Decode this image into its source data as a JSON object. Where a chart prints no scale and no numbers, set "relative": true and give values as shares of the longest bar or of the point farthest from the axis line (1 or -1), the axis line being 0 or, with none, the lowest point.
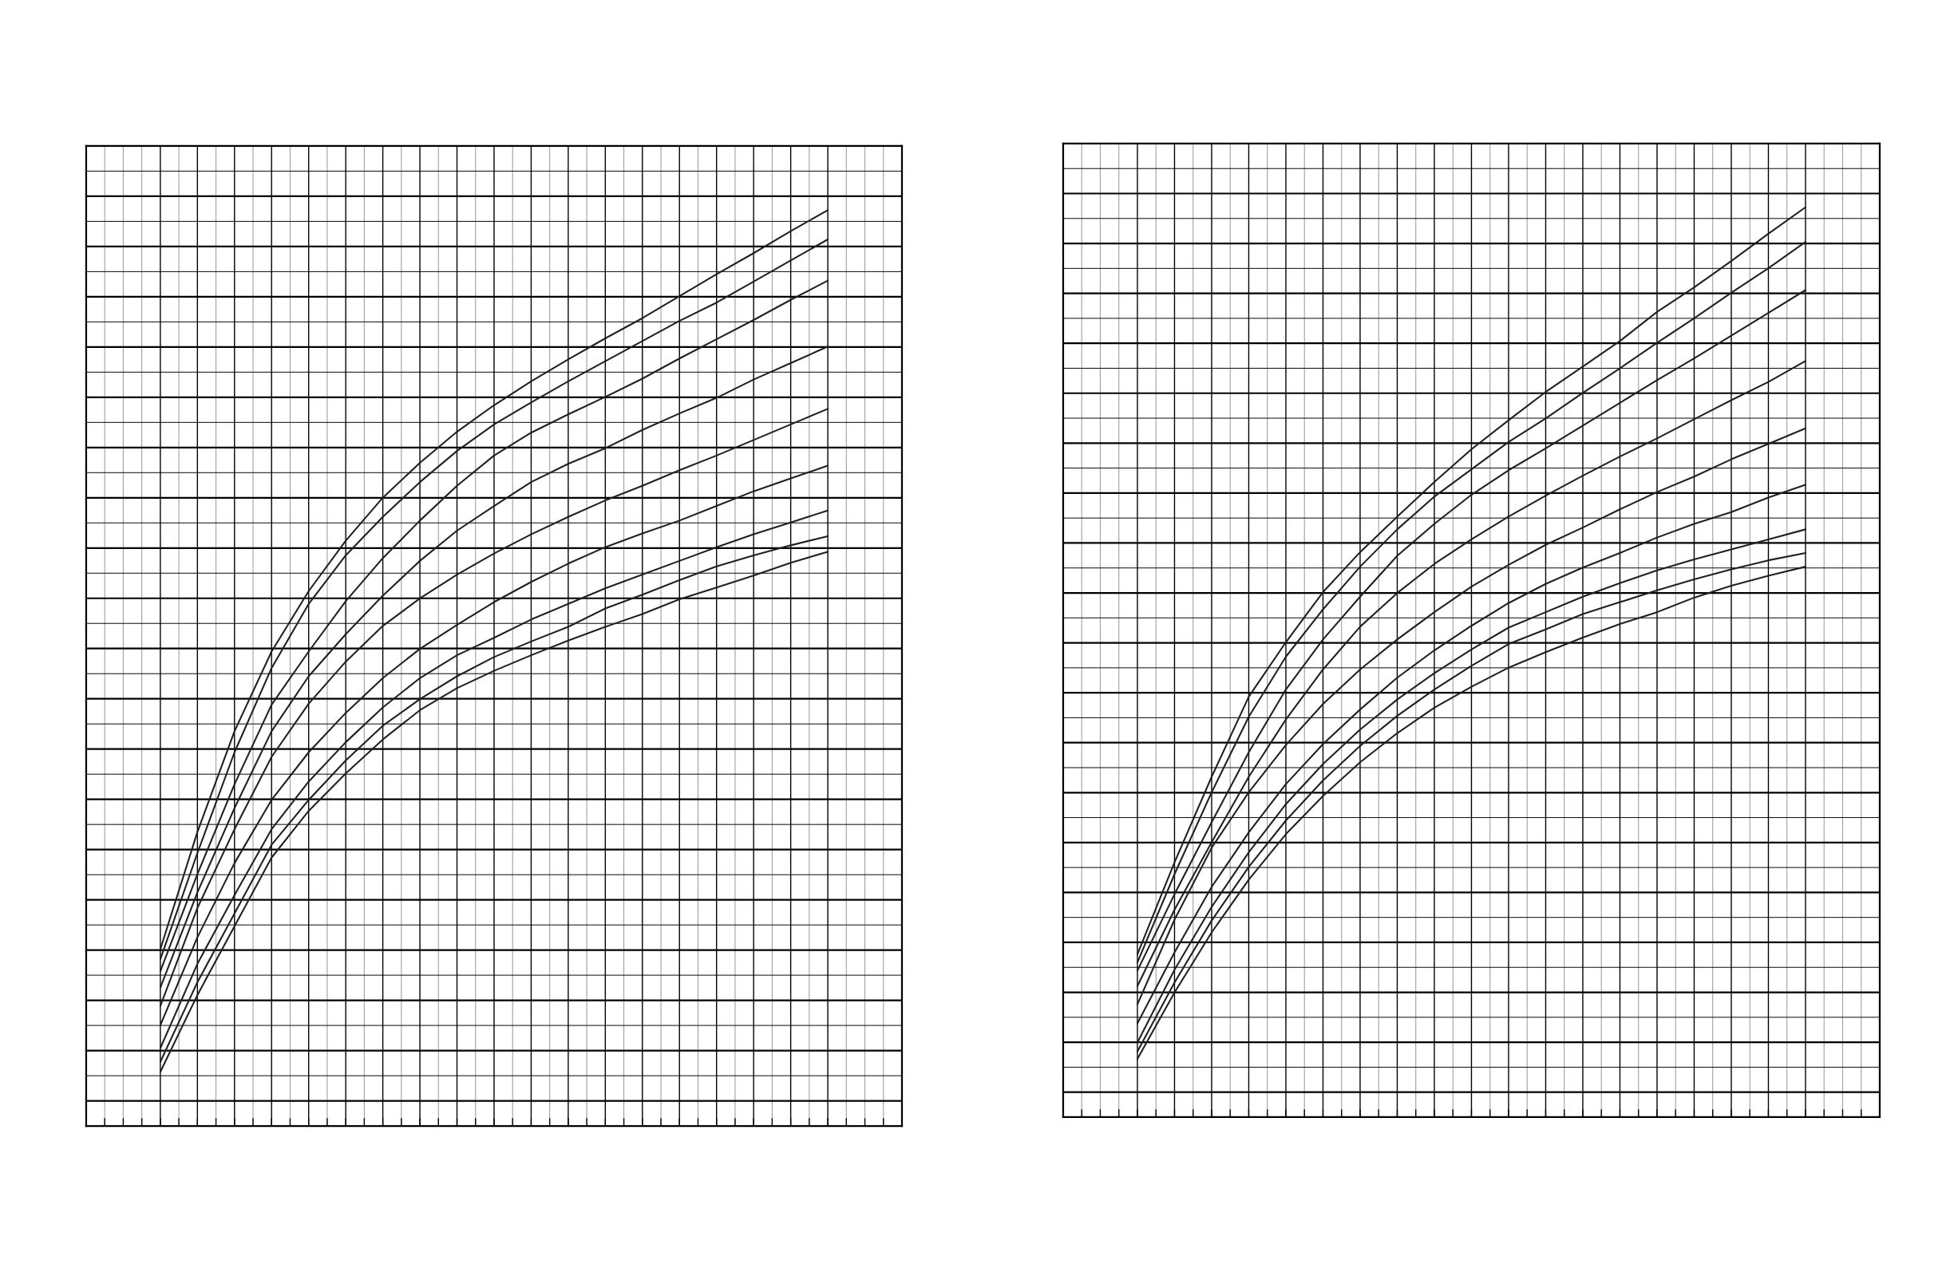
{
  "chart_data": [
    {
      "type": "line",
      "relative": true,
      "grid": true,
      "categories": [
        null,
        null,
        null,
        null,
        null,
        null,
        null,
        null,
        null,
        null,
        null,
        null,
        null,
        null,
        null,
        null,
        null,
        null,
        null
      ],
      "series": [
        {
          "color": "#231f20",
          "values": [
            0.193,
            0.321,
            0.431,
            0.518,
            0.584,
            0.639,
            0.686,
            0.724,
            0.758,
            0.787,
            0.813,
            0.837,
            0.86,
            0.882,
            0.906,
            0.93,
            0.953,
            0.977,
            1.0
          ]
        },
        {
          "color": "#231f20",
          "values": [
            0.182,
            0.298,
            0.408,
            0.5,
            0.57,
            0.623,
            0.665,
            0.703,
            0.737,
            0.766,
            0.79,
            0.813,
            0.835,
            0.857,
            0.879,
            0.899,
            0.922,
            0.945,
            0.968
          ]
        },
        {
          "color": "#231f20",
          "values": [
            0.169,
            0.275,
            0.373,
            0.46,
            0.518,
            0.573,
            0.62,
            0.661,
            0.699,
            0.732,
            0.757,
            0.777,
            0.796,
            0.816,
            0.838,
            0.859,
            0.88,
            0.902,
            0.923
          ]
        },
        {
          "color": "#231f20",
          "values": [
            0.151,
            0.255,
            0.347,
            0.431,
            0.491,
            0.537,
            0.579,
            0.617,
            0.65,
            0.677,
            0.703,
            0.723,
            0.74,
            0.76,
            0.778,
            0.795,
            0.815,
            0.833,
            0.851
          ]
        },
        {
          "color": "#231f20",
          "values": [
            0.131,
            0.238,
            0.324,
            0.403,
            0.461,
            0.507,
            0.546,
            0.576,
            0.602,
            0.625,
            0.646,
            0.665,
            0.683,
            0.699,
            0.716,
            0.732,
            0.749,
            0.766,
            0.783
          ]
        },
        {
          "color": "#231f20",
          "values": [
            0.11,
            0.206,
            0.287,
            0.356,
            0.408,
            0.451,
            0.489,
            0.521,
            0.547,
            0.572,
            0.594,
            0.614,
            0.632,
            0.647,
            0.661,
            0.677,
            0.693,
            0.707,
            0.721
          ]
        },
        {
          "color": "#231f20",
          "values": [
            0.085,
            0.177,
            0.252,
            0.324,
            0.376,
            0.419,
            0.457,
            0.489,
            0.514,
            0.533,
            0.553,
            0.57,
            0.587,
            0.602,
            0.617,
            0.632,
            0.646,
            0.659,
            0.672
          ]
        },
        {
          "color": "#231f20",
          "values": [
            0.07,
            0.157,
            0.232,
            0.307,
            0.356,
            0.399,
            0.437,
            0.466,
            0.491,
            0.512,
            0.529,
            0.545,
            0.565,
            0.58,
            0.596,
            0.611,
            0.623,
            0.634,
            0.644
          ]
        },
        {
          "color": "#231f20",
          "values": [
            0.059,
            0.143,
            0.218,
            0.293,
            0.344,
            0.385,
            0.422,
            0.454,
            0.478,
            0.497,
            0.514,
            0.53,
            0.545,
            0.559,
            0.575,
            0.588,
            0.601,
            0.615,
            0.627
          ]
        }
      ]
    },
    {
      "type": "line",
      "relative": true,
      "grid": true,
      "categories": [
        null,
        null,
        null,
        null,
        null,
        null,
        null,
        null,
        null,
        null,
        null,
        null,
        null,
        null,
        null,
        null,
        null,
        null,
        null
      ],
      "series": [
        {
          "color": "#231f20",
          "values": [
            0.179,
            0.28,
            0.374,
            0.462,
            0.522,
            0.577,
            0.621,
            0.66,
            0.698,
            0.734,
            0.766,
            0.797,
            0.825,
            0.853,
            0.885,
            0.912,
            0.941,
            0.971,
            1.0
          ]
        },
        {
          "color": "#231f20",
          "values": [
            0.17,
            0.267,
            0.357,
            0.44,
            0.506,
            0.558,
            0.605,
            0.646,
            0.682,
            0.712,
            0.742,
            0.768,
            0.796,
            0.823,
            0.851,
            0.878,
            0.906,
            0.933,
            0.962
          ]
        },
        {
          "color": "#231f20",
          "values": [
            0.161,
            0.245,
            0.324,
            0.401,
            0.47,
            0.525,
            0.572,
            0.617,
            0.652,
            0.684,
            0.711,
            0.735,
            0.76,
            0.785,
            0.81,
            0.834,
            0.859,
            0.884,
            0.909
          ]
        },
        {
          "color": "#231f20",
          "values": [
            0.144,
            0.228,
            0.302,
            0.374,
            0.437,
            0.492,
            0.539,
            0.576,
            0.608,
            0.635,
            0.66,
            0.683,
            0.705,
            0.726,
            0.746,
            0.767,
            0.788,
            0.808,
            0.831
          ]
        },
        {
          "color": "#231f20",
          "values": [
            0.124,
            0.217,
            0.296,
            0.357,
            0.409,
            0.454,
            0.492,
            0.525,
            0.555,
            0.583,
            0.607,
            0.629,
            0.648,
            0.668,
            0.687,
            0.704,
            0.723,
            0.74,
            0.757
          ]
        },
        {
          "color": "#231f20",
          "values": [
            0.103,
            0.181,
            0.253,
            0.313,
            0.366,
            0.41,
            0.448,
            0.483,
            0.513,
            0.54,
            0.565,
            0.586,
            0.604,
            0.62,
            0.637,
            0.652,
            0.665,
            0.681,
            0.695
          ]
        },
        {
          "color": "#231f20",
          "values": [
            0.082,
            0.162,
            0.231,
            0.291,
            0.344,
            0.388,
            0.426,
            0.459,
            0.488,
            0.514,
            0.538,
            0.555,
            0.572,
            0.587,
            0.601,
            0.613,
            0.624,
            0.635,
            0.646
          ]
        },
        {
          "color": "#231f20",
          "values": [
            0.072,
            0.148,
            0.216,
            0.275,
            0.326,
            0.37,
            0.408,
            0.441,
            0.47,
            0.496,
            0.52,
            0.536,
            0.553,
            0.566,
            0.579,
            0.591,
            0.602,
            0.612,
            0.62
          ]
        },
        {
          "color": "#231f20",
          "values": [
            0.064,
            0.137,
            0.203,
            0.261,
            0.311,
            0.353,
            0.39,
            0.422,
            0.45,
            0.473,
            0.494,
            0.511,
            0.527,
            0.542,
            0.555,
            0.571,
            0.584,
            0.595,
            0.605
          ]
        }
      ]
    }
  ]
}
